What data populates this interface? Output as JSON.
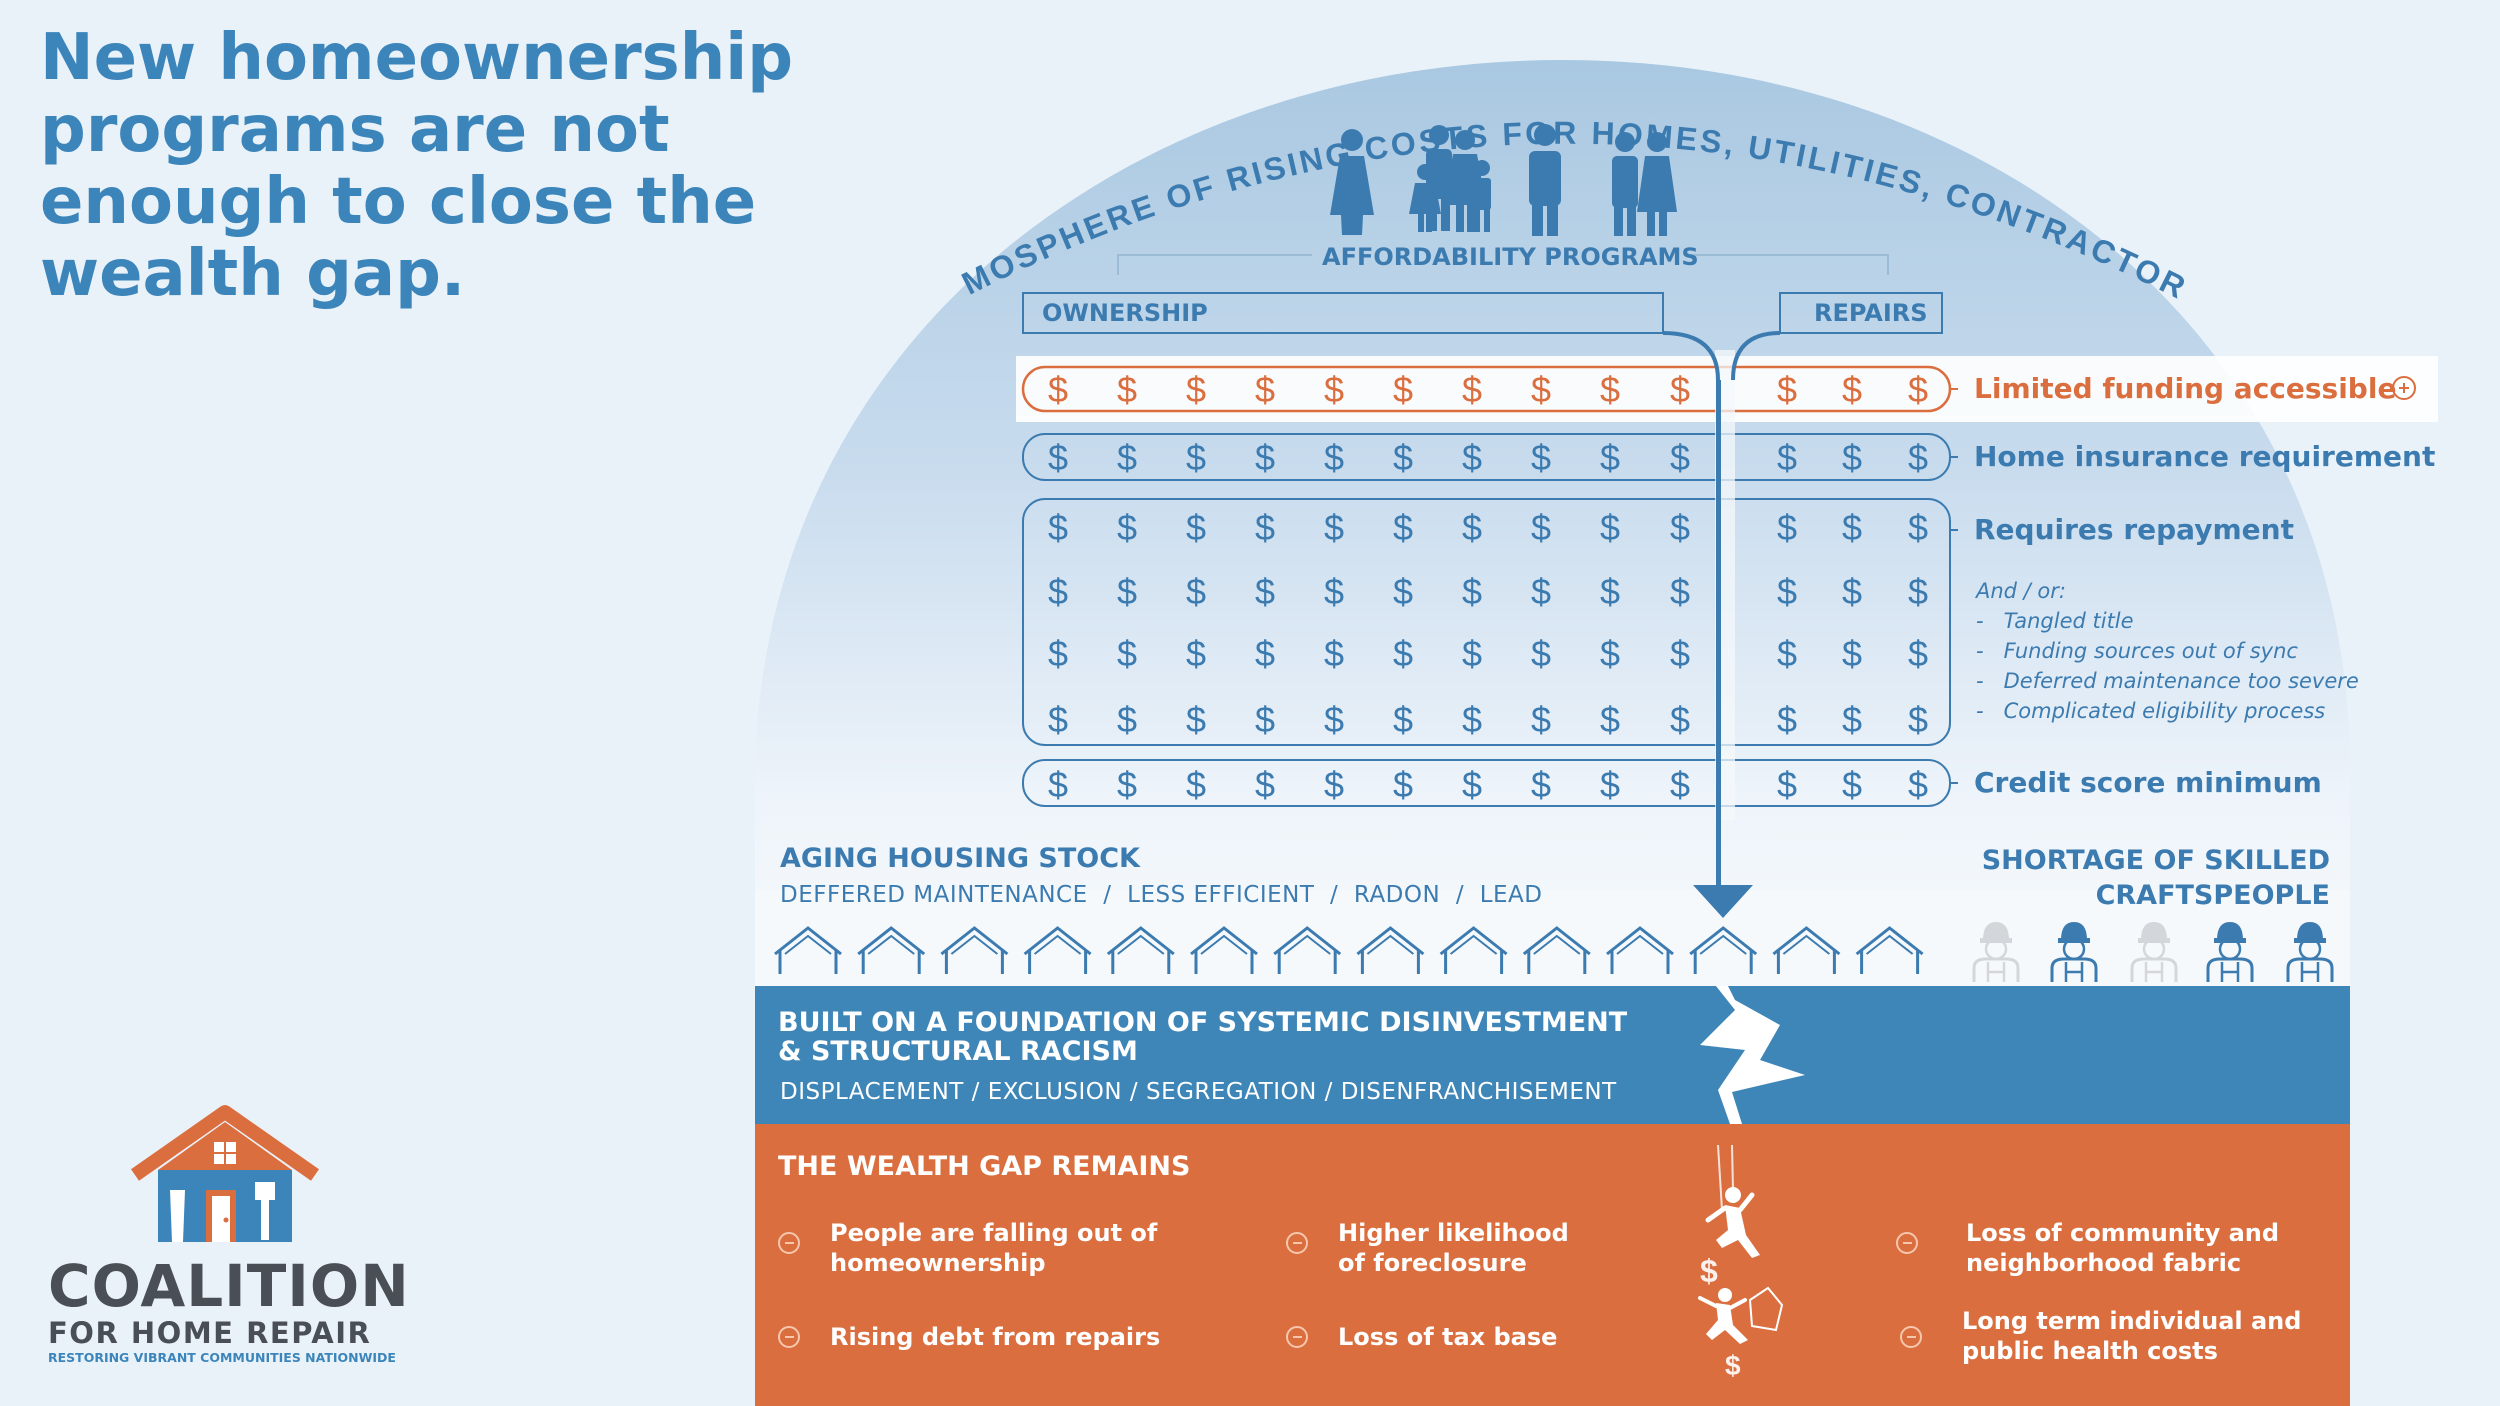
{
  "title": "New homeownership programs are not enough to close the wealth gap.",
  "arc_text": "ATMOSPHERE OF RISING COSTS FOR HOMES, UTILITIES, CONTRACTORS",
  "affordability": {
    "label": "AFFORDABILITY PROGRAMS",
    "ownership": "OWNERSHIP",
    "repairs": "REPAIRS"
  },
  "barriers": {
    "limited_funding": "Limited funding accessible",
    "home_insurance": "Home insurance requirement",
    "repayment": "Requires repayment",
    "and_or": "And / or:",
    "sub_items": [
      "Tangled title",
      "Funding sources out of sync",
      "Deferred maintenance too severe",
      "Complicated eligibility process"
    ],
    "credit_score": "Credit score minimum"
  },
  "aging": {
    "title": "AGING HOUSING STOCK",
    "subtitle": "DEFFERED MAINTENANCE  /  LESS EFFICIENT  /  RADON  /  LEAD"
  },
  "shortage": {
    "line1": "SHORTAGE OF SKILLED",
    "line2": "CRAFTSPEOPLE"
  },
  "foundation": {
    "title_line1": "BUILT ON A FOUNDATION OF SYSTEMIC DISINVESTMENT",
    "title_line2": "& STRUCTURAL RACISM",
    "subtitle": "DISPLACEMENT / EXCLUSION / SEGREGATION / DISENFRANCHISEMENT"
  },
  "wealth_gap": {
    "title": "THE WEALTH GAP REMAINS",
    "items": [
      {
        "line1": "People are falling out of",
        "line2": "homeownership"
      },
      {
        "line1": "Higher likelihood",
        "line2": "of foreclosure"
      },
      {
        "line1": "Loss of community and",
        "line2": "neighborhood fabric"
      },
      {
        "line1": "Rising debt from repairs",
        "line2": ""
      },
      {
        "line1": "Loss of tax base",
        "line2": ""
      },
      {
        "line1": "Long term individual and",
        "line2": "public health costs"
      }
    ]
  },
  "logo": {
    "name_line1": "COALITION",
    "name_line2": "FOR HOME REPAIR",
    "tagline": "RESTORING VIBRANT COMMUNITIES NATIONWIDE"
  },
  "colors": {
    "primary_blue": "#3c85bb",
    "foundation_blue": "#3f86b8",
    "orange": "#db6e3f",
    "background": "#eaf2f9"
  }
}
